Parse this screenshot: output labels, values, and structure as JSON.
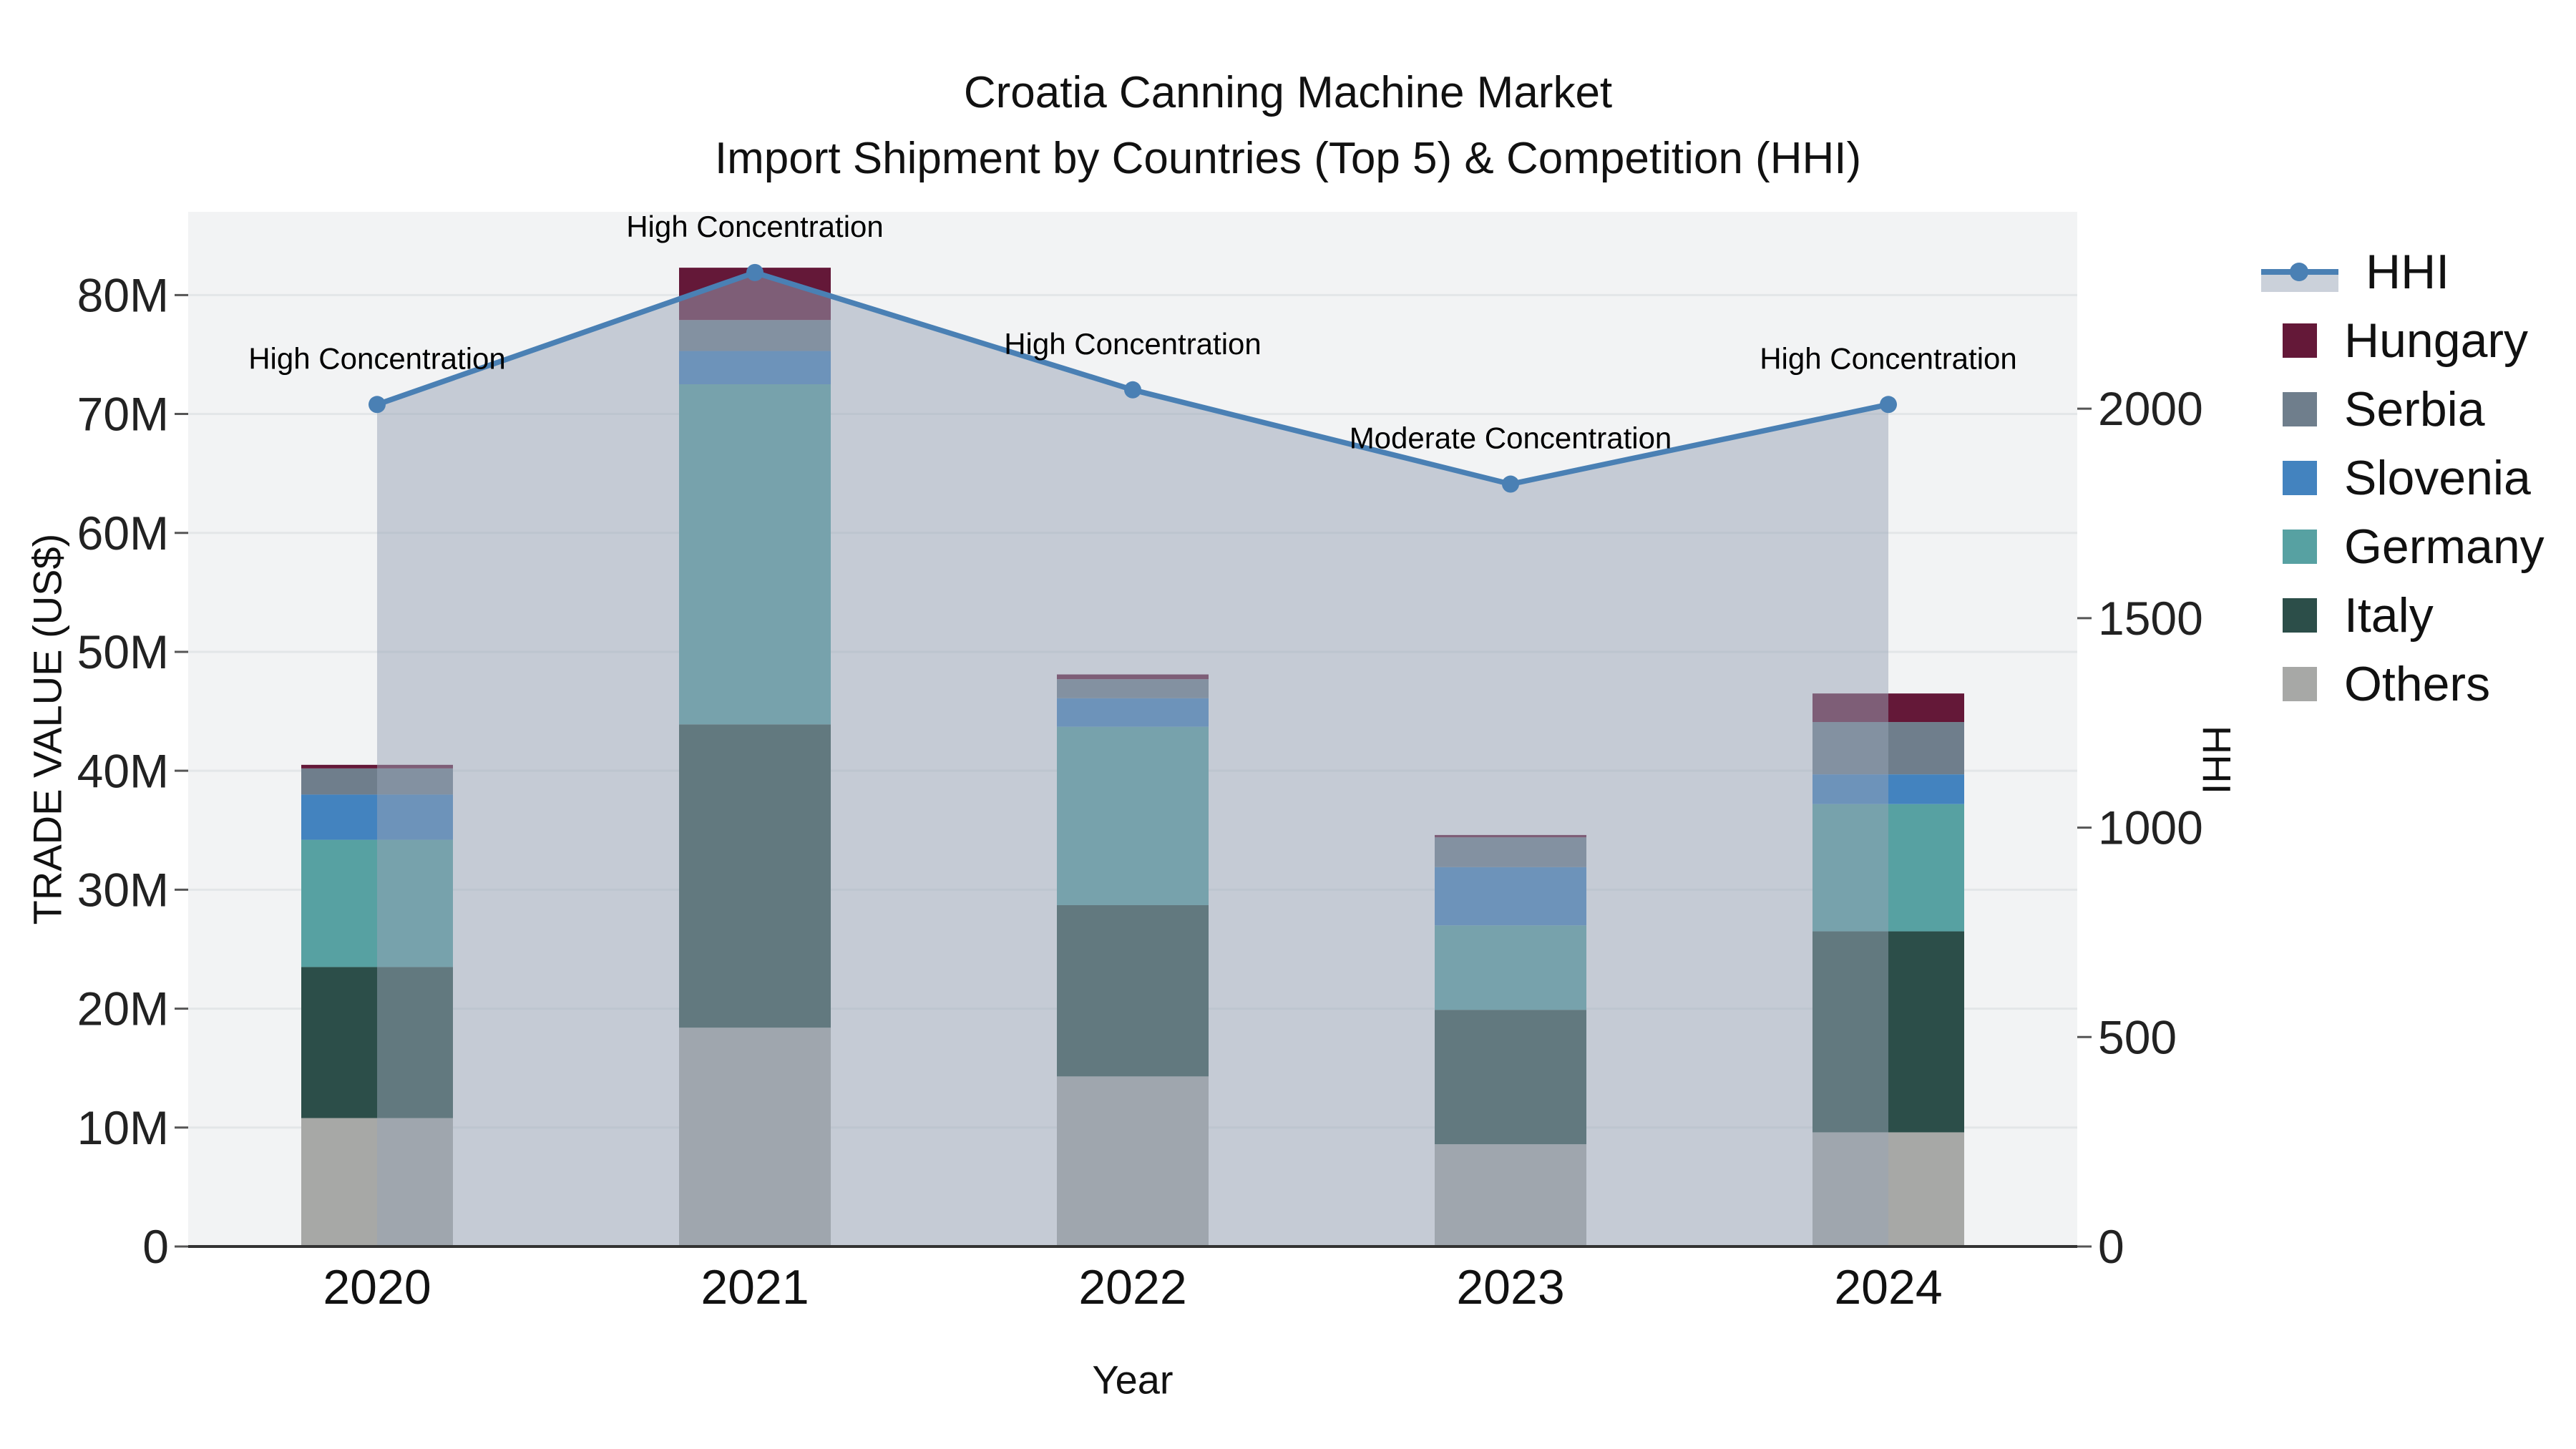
{
  "title": {
    "line1": "Croatia Canning Machine Market",
    "line2": "Import Shipment by Countries (Top 5) & Competition (HHI)"
  },
  "chart_data": {
    "type": "bar",
    "subtype": "stacked-bar-with-line",
    "categories": [
      "2020",
      "2021",
      "2022",
      "2023",
      "2024"
    ],
    "series": [
      {
        "name": "Others",
        "color": "#a7a8a6",
        "values": [
          10.8,
          18.4,
          14.3,
          8.6,
          9.6
        ]
      },
      {
        "name": "Italy",
        "color": "#2c4e49",
        "values": [
          12.7,
          25.5,
          14.4,
          11.3,
          16.9
        ]
      },
      {
        "name": "Germany",
        "color": "#57a1a2",
        "values": [
          10.7,
          28.6,
          15.0,
          7.1,
          10.7
        ]
      },
      {
        "name": "Slovenia",
        "color": "#4383bf",
        "values": [
          3.8,
          2.8,
          2.4,
          4.9,
          2.5
        ]
      },
      {
        "name": "Serbia",
        "color": "#6f7e8c",
        "values": [
          2.2,
          2.6,
          1.6,
          2.5,
          4.4
        ]
      },
      {
        "name": "Hungary",
        "color": "#641838",
        "values": [
          0.3,
          4.4,
          0.4,
          0.2,
          2.4
        ]
      }
    ],
    "bar_totals": [
      40.5,
      82.3,
      48.1,
      34.6,
      46.5
    ],
    "line": {
      "name": "HHI",
      "color": "#4a80b4",
      "area_fill": "rgba(152,164,181,0.5)",
      "values": [
        2010,
        2325,
        2045,
        1820,
        2010
      ]
    },
    "annotations": [
      "High Concentration",
      "High Concentration",
      "High Concentration",
      "Moderate Concentration",
      "High Concentration"
    ],
    "left_axis": {
      "title": "TRADE VALUE (US$)",
      "ticks": [
        "0",
        "10M",
        "20M",
        "30M",
        "40M",
        "50M",
        "60M",
        "70M",
        "80M"
      ],
      "tick_values": [
        0,
        10,
        20,
        30,
        40,
        50,
        60,
        70,
        80
      ],
      "range": [
        0,
        87
      ]
    },
    "right_axis": {
      "title": "HHI",
      "ticks": [
        "0",
        "500",
        "1000",
        "1500",
        "2000"
      ],
      "tick_values": [
        0,
        500,
        1000,
        1500,
        2000
      ],
      "range": [
        0,
        2470
      ]
    },
    "x_axis": {
      "title": "Year"
    },
    "legend": [
      "HHI",
      "Hungary",
      "Serbia",
      "Slovenia",
      "Germany",
      "Italy",
      "Others"
    ],
    "grid": "horizontal",
    "legend_position": "right"
  }
}
